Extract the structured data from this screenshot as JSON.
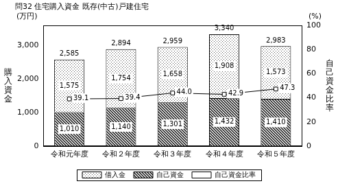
{
  "chart_data": {
    "type": "bar",
    "title": "問32 住宅購入資金 既存(中古)戸建住宅",
    "y_label": "購入資金",
    "y2_label": "自己資金比率",
    "y_unit": "(万円)",
    "y2_unit": "(%)",
    "categories": [
      "令和元年度",
      "令和２年度",
      "令和３年度",
      "令和４年度",
      "令和５年度"
    ],
    "stacked": true,
    "data_labels": true,
    "grid": false,
    "legend": "bottom",
    "ylim": [
      0,
      3600
    ],
    "yticks": [
      0,
      {
        "value": 1000,
        "label": "1,000"
      },
      {
        "value": 2000,
        "label": "2,000"
      },
      {
        "value": 3000,
        "label": "3,000"
      }
    ],
    "y2lim": [
      0,
      100
    ],
    "y2ticks": [
      0,
      20,
      40,
      60,
      80,
      100
    ],
    "series": [
      {
        "name": "借入金",
        "type": "bar",
        "color": "#555555",
        "values": [
          1575,
          1754,
          1658,
          1908,
          1573
        ],
        "value_labels": [
          "1,575",
          "1,754",
          "1,658",
          "1,908",
          "1,573"
        ]
      },
      {
        "name": "自己資金",
        "type": "bar",
        "color": "#000000",
        "values": [
          1010,
          1140,
          1301,
          1432,
          1410
        ],
        "value_labels": [
          "1,010",
          "1,140",
          "1,301",
          "1,432",
          "1,410"
        ]
      },
      {
        "name": "自己資金比率",
        "type": "line",
        "axis": "y2",
        "color": "#000000",
        "marker": "rect",
        "values": [
          39.1,
          39.4,
          44.0,
          42.9,
          47.3
        ],
        "value_labels": [
          "39.1",
          "39.4",
          "44.0",
          "42.9",
          "47.3"
        ]
      }
    ],
    "totals": {
      "values": [
        2585,
        2894,
        2959,
        3340,
        2983
      ],
      "value_labels": [
        "2,585",
        "2,894",
        "2,959",
        "3,340",
        "2,983"
      ]
    }
  }
}
